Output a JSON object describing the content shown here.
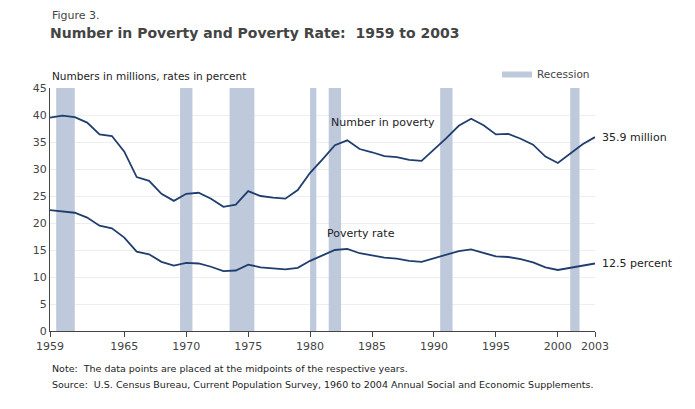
{
  "chart_data": {
    "type": "line",
    "subtitle": "Figure 3.",
    "title": "Number in Poverty and Poverty Rate:  1959 to 2003",
    "y_label": "Numbers in millions, rates in percent",
    "x": [
      1959,
      1960,
      1961,
      1962,
      1963,
      1964,
      1965,
      1966,
      1967,
      1968,
      1969,
      1970,
      1971,
      1972,
      1973,
      1974,
      1975,
      1976,
      1977,
      1978,
      1979,
      1980,
      1981,
      1982,
      1983,
      1984,
      1985,
      1986,
      1987,
      1988,
      1989,
      1990,
      1991,
      1992,
      1993,
      1994,
      1995,
      1996,
      1997,
      1998,
      1999,
      2000,
      2001,
      2002,
      2003
    ],
    "series": [
      {
        "color": "#1F3E6E",
        "values": [
          39.5,
          39.9,
          39.6,
          38.6,
          36.4,
          36.1,
          33.2,
          28.5,
          27.8,
          25.4,
          24.1,
          25.4,
          25.6,
          24.5,
          23.0,
          23.4,
          25.9,
          25.0,
          24.7,
          24.5,
          26.1,
          29.3,
          31.8,
          34.4,
          35.3,
          33.7,
          33.1,
          32.4,
          32.2,
          31.7,
          31.5,
          33.6,
          35.7,
          38.0,
          39.3,
          38.1,
          36.4,
          36.5,
          35.6,
          34.5,
          32.3,
          31.1,
          32.9,
          34.6,
          35.9
        ]
      },
      {
        "color": "#1F3E6E",
        "values": [
          22.4,
          22.2,
          21.9,
          21.0,
          19.5,
          19.0,
          17.3,
          14.7,
          14.2,
          12.8,
          12.1,
          12.6,
          12.5,
          11.9,
          11.1,
          11.2,
          12.3,
          11.8,
          11.6,
          11.4,
          11.7,
          13.0,
          14.0,
          15.0,
          15.2,
          14.4,
          14.0,
          13.6,
          13.4,
          13.0,
          12.8,
          13.5,
          14.2,
          14.8,
          15.1,
          14.5,
          13.8,
          13.7,
          13.3,
          12.7,
          11.8,
          11.3,
          11.7,
          12.1,
          12.5
        ]
      }
    ],
    "shaded_periods": {
      "name": "Recession",
      "color": "#BFC9DC",
      "periods": [
        [
          1959.5,
          1961.0
        ],
        [
          1969.5,
          1970.5
        ],
        [
          1973.5,
          1975.5
        ],
        [
          1980.0,
          1980.5
        ],
        [
          1981.5,
          1982.5
        ],
        [
          1990.5,
          1991.5
        ],
        [
          2001.0,
          2001.75
        ]
      ]
    },
    "annotations": [
      {
        "text": "Number in poverty",
        "x": 1981.5,
        "y": 37.0
      },
      {
        "text": "Poverty rate",
        "x": 1981.2,
        "y": 16.5
      },
      {
        "text": "35.9 million",
        "x": 2003,
        "y": 35.9
      },
      {
        "text": "12.5 percent",
        "x": 2003,
        "y": 12.5
      },
      {
        "text": "Note:  The data points are placed at the midpoints of the respective years."
      },
      {
        "text": "Source:  U.S. Census Bureau, Current Population Survey, 1960 to 2004 Annual Social and Economic Supplements."
      }
    ],
    "xlim": [
      1959,
      2003
    ],
    "xticks": [
      1959,
      1965,
      1970,
      1975,
      1980,
      1985,
      1990,
      1995,
      2000,
      2003
    ],
    "ylim": [
      0,
      45
    ],
    "yticks": [
      0,
      5,
      10,
      15,
      20,
      25,
      30,
      35,
      40,
      45
    ],
    "grid": "y",
    "legend": "upper right"
  }
}
